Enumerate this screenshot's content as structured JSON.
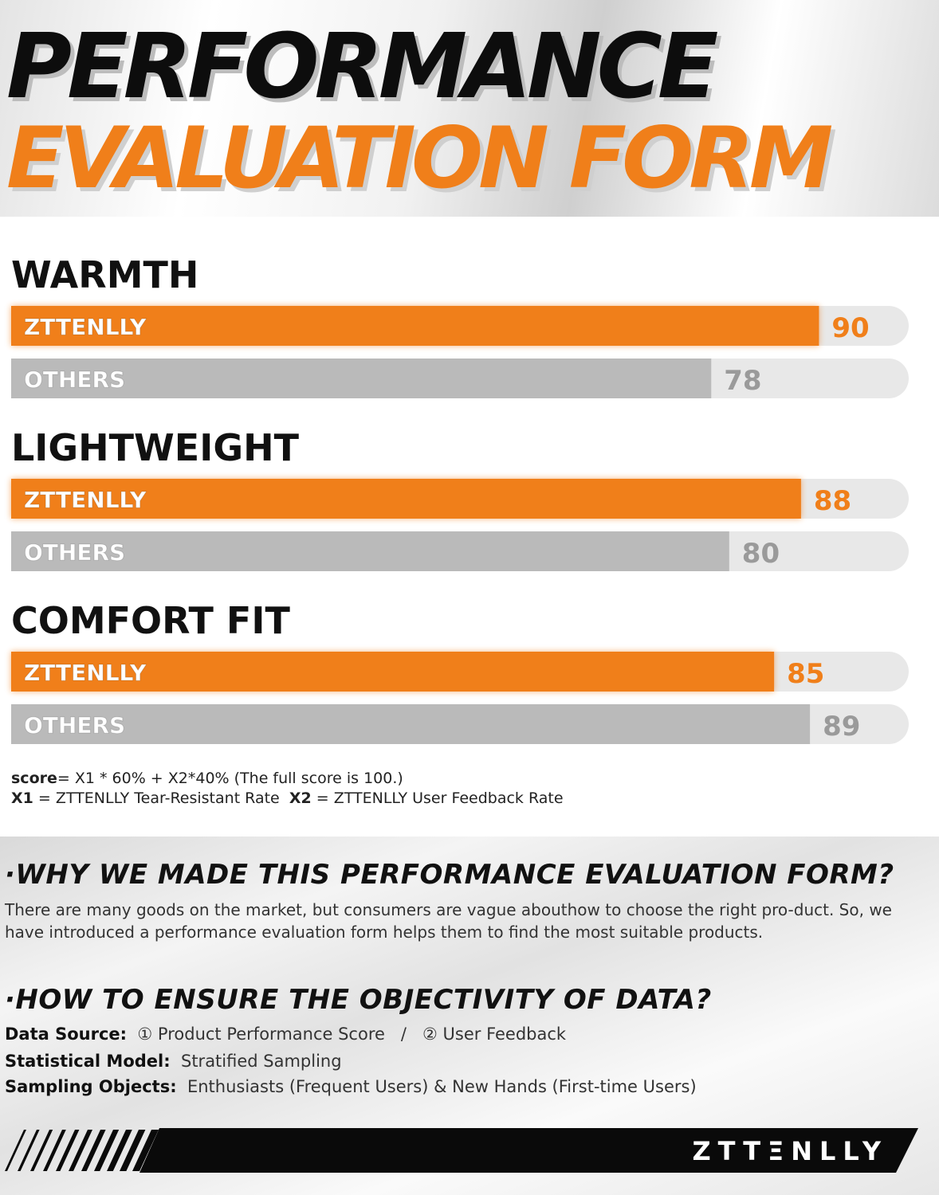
{
  "header": {
    "title_line1": "PERFORMANCE",
    "title_line2": "EVALUATION FORM"
  },
  "colors": {
    "brand_orange": "#f07f1a",
    "others_gray": "#bababa",
    "track_gray": "#e8e8e8",
    "footer_black": "#0a0a0a"
  },
  "chart_data": {
    "type": "bar",
    "orientation": "horizontal",
    "xlim": [
      0,
      100
    ],
    "grid": false,
    "categories": [
      "WARMTH",
      "LIGHTWEIGHT",
      "COMFORT FIT"
    ],
    "series": [
      {
        "name": "ZTTENLLY",
        "values": [
          90,
          88,
          85
        ]
      },
      {
        "name": "OTHERS",
        "values": [
          78,
          80,
          89
        ]
      }
    ]
  },
  "formula": {
    "score_label": "score",
    "score_rest": "= X1 * 60% + X2*40%  (The full score is 100.)",
    "x1_label": "X1",
    "x1_text": " = ZTTENLLY Tear-Resistant Rate  ",
    "x2_label": "X2",
    "x2_text": " = ZTTENLLY User Feedback Rate"
  },
  "info": {
    "q1_heading": "·WHY WE MADE THIS PERFORMANCE EVALUATION FORM?",
    "q1_text": "There are many goods on the market, but consumers are vague abouthow to choose the right pro-duct. So, we have introduced a performance evaluation form helps them to find the most suitable products.",
    "q2_heading": "·HOW TO ENSURE THE OBJECTIVITY OF DATA?",
    "data_source_label": "Data Source:",
    "data_source_value": "  ① Product Performance Score   /   ② User Feedback",
    "model_label": "Statistical Model:",
    "model_value": "  Stratified Sampling",
    "objects_label": "Sampling Objects:",
    "objects_value": "  Enthusiasts (Frequent Users) & New Hands (First-time Users)"
  },
  "footer": {
    "brand": "ZTTΞNLLY"
  }
}
